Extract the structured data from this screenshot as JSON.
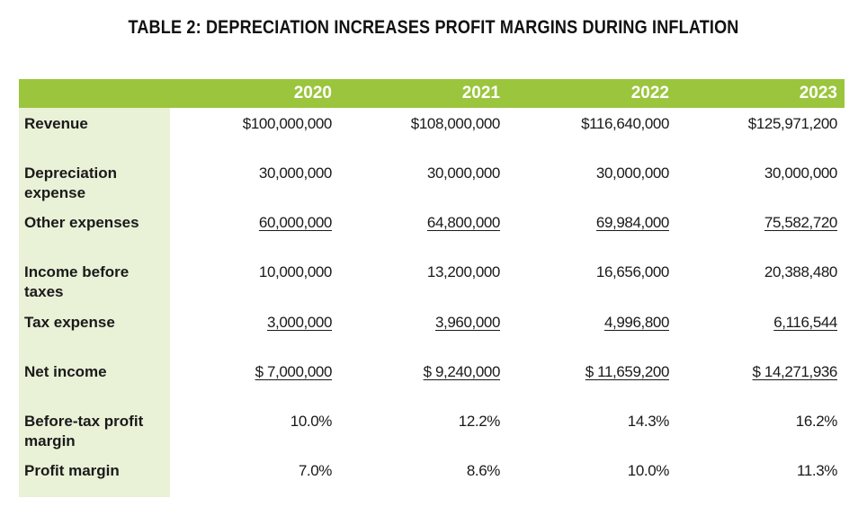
{
  "title": "TABLE 2: DEPRECIATION INCREASES PROFIT MARGINS DURING INFLATION",
  "colors": {
    "header_bg": "#9bc53d",
    "label_col_bg": "#e9f1d7",
    "header_text": "#ffffff"
  },
  "table": {
    "columns": [
      "2020",
      "2021",
      "2022",
      "2023"
    ],
    "rows": [
      {
        "label": "Revenue",
        "values": [
          "$100,000,000",
          "$108,000,000",
          "$116,640,000",
          "$125,971,200"
        ],
        "underline": false
      },
      {
        "label": "Depreciation expense",
        "values": [
          "30,000,000",
          "30,000,000",
          "30,000,000",
          "30,000,000"
        ],
        "underline": false
      },
      {
        "label": "Other expenses",
        "values": [
          "60,000,000",
          "64,800,000",
          "69,984,000",
          "75,582,720"
        ],
        "underline": true
      },
      {
        "label": "Income before taxes",
        "values": [
          "10,000,000",
          "13,200,000",
          "16,656,000",
          "20,388,480"
        ],
        "underline": false
      },
      {
        "label": "Tax expense",
        "values": [
          "3,000,000",
          "3,960,000",
          "4,996,800",
          "6,116,544"
        ],
        "underline": true
      },
      {
        "label": "Net income",
        "values": [
          "$ 7,000,000",
          "$ 9,240,000",
          "$ 11,659,200",
          "$ 14,271,936"
        ],
        "underline": true
      },
      {
        "label": "Before-tax profit margin",
        "values": [
          "10.0%",
          "12.2%",
          "14.3%",
          "16.2%"
        ],
        "underline": false
      },
      {
        "label": "Profit margin",
        "values": [
          "7.0%",
          "8.6%",
          "10.0%",
          "11.3%"
        ],
        "underline": false
      }
    ]
  }
}
